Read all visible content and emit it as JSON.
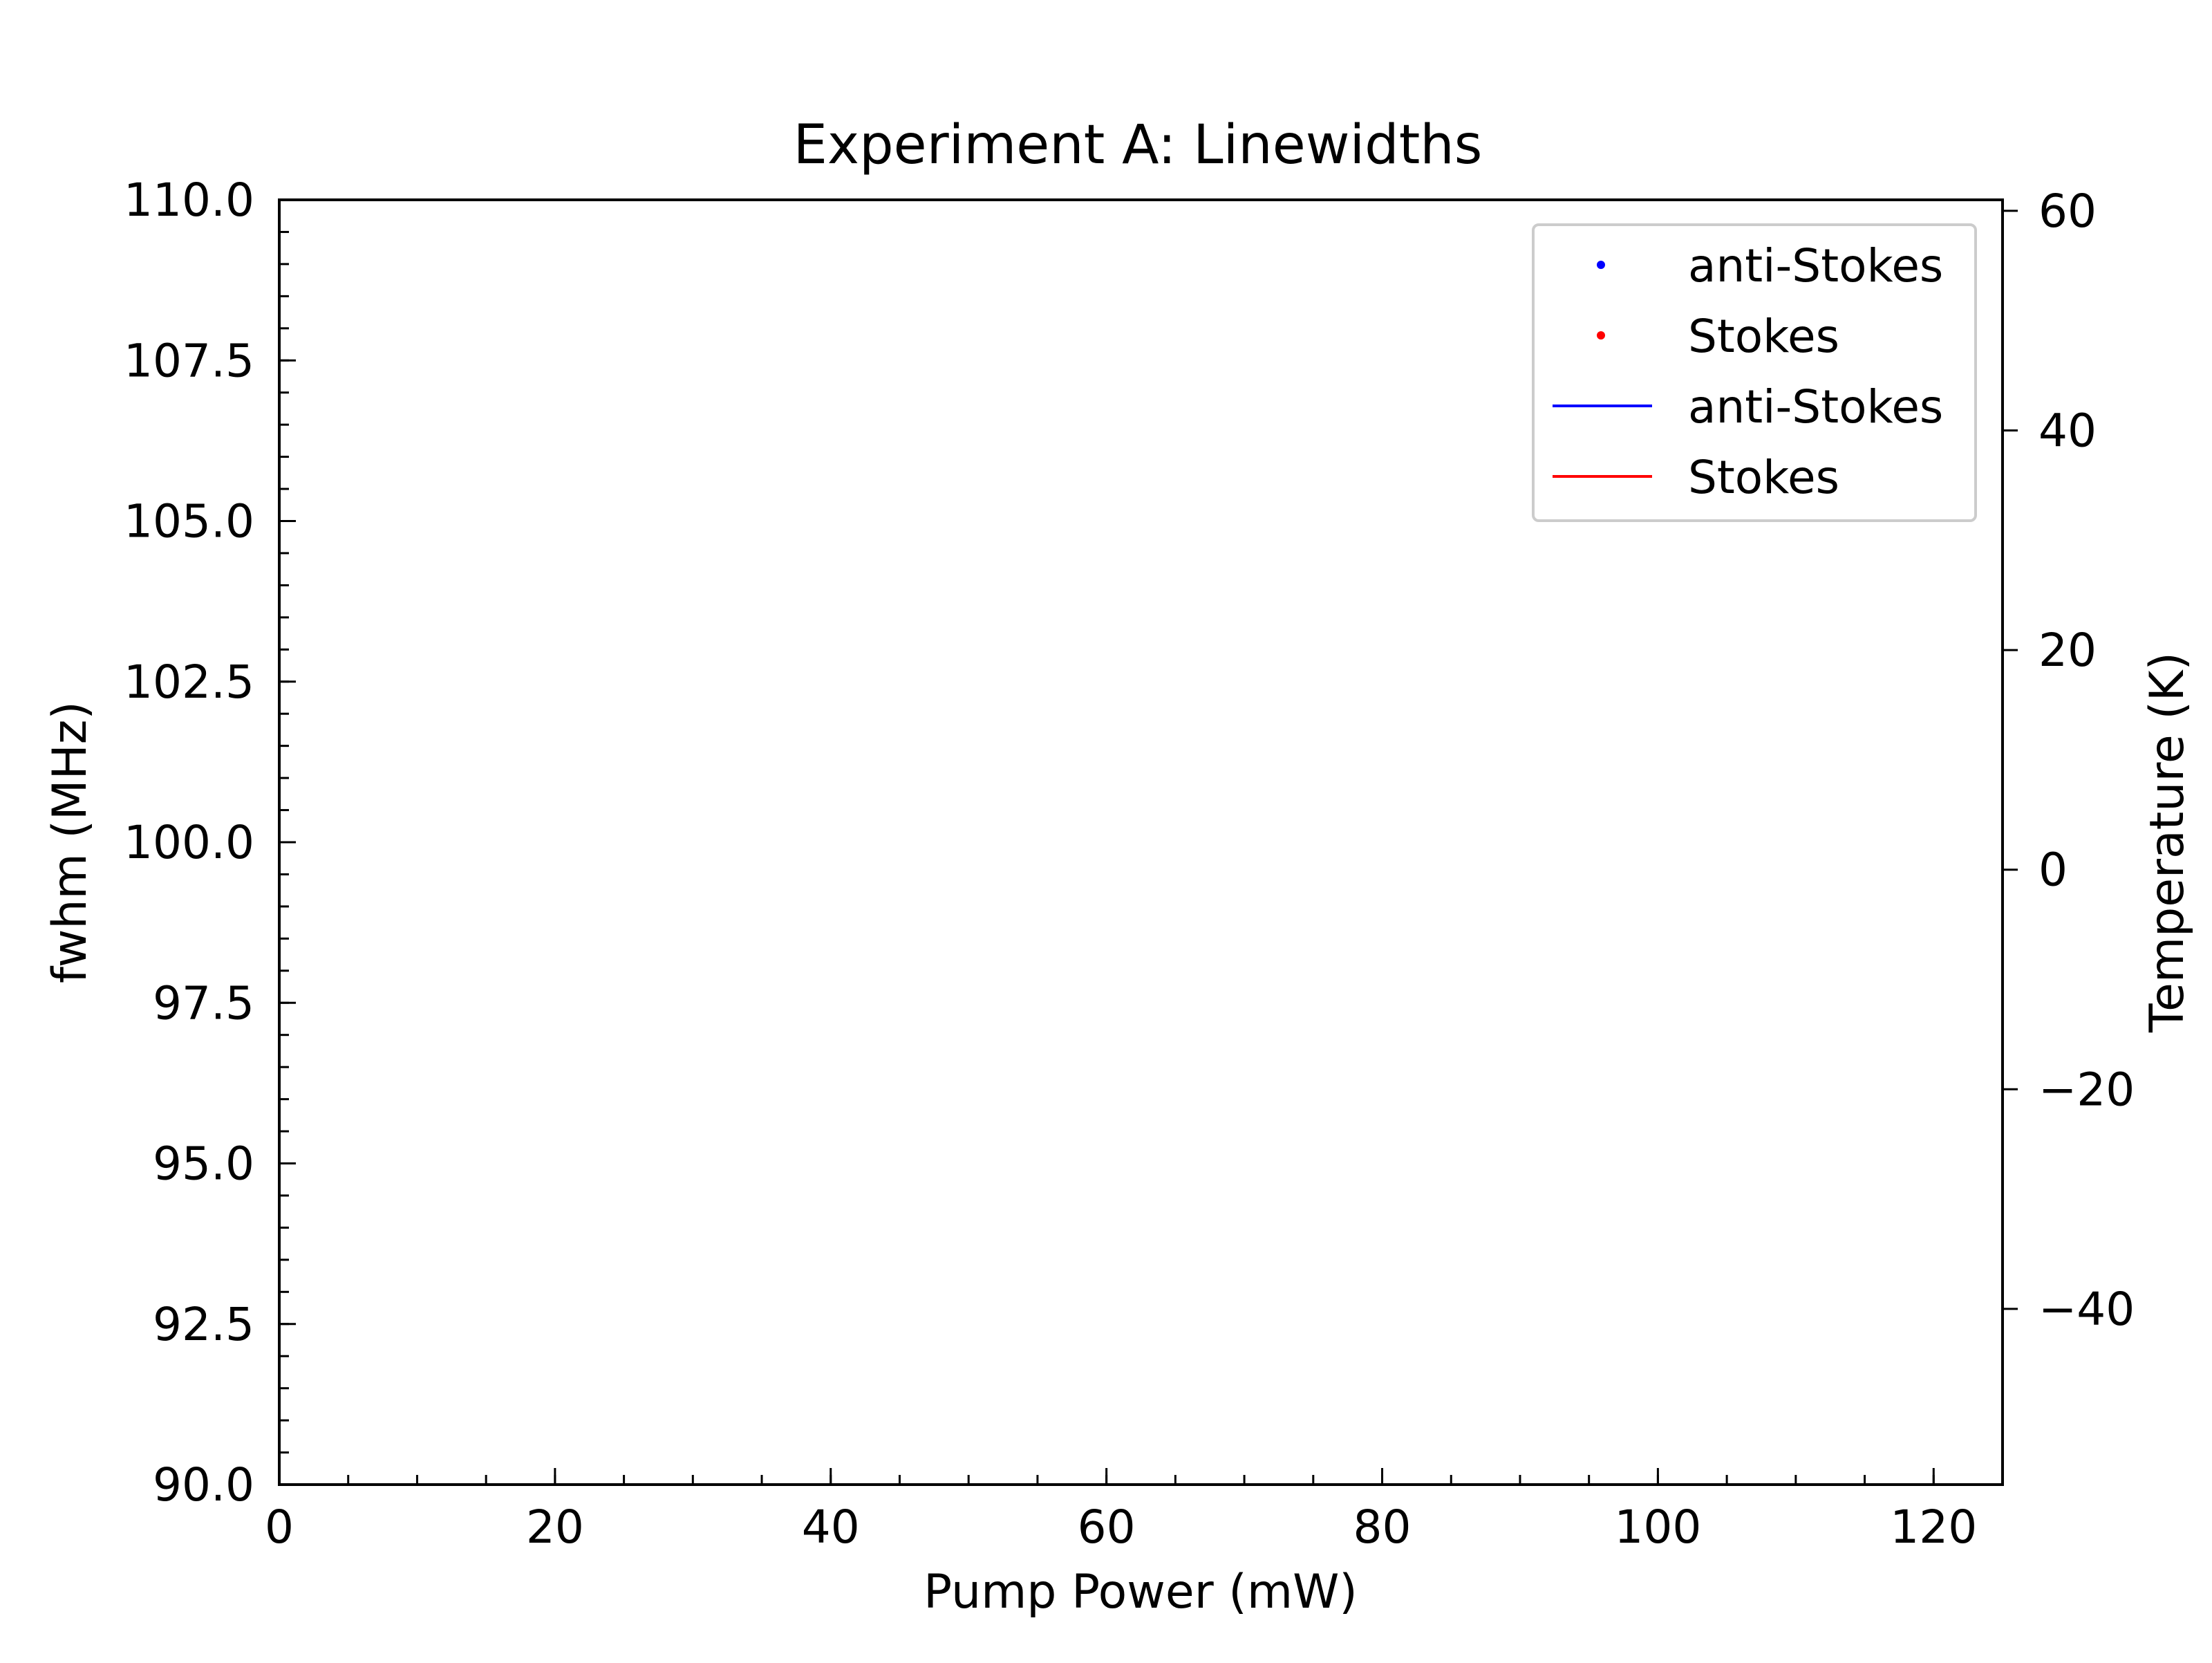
{
  "chart_data": {
    "type": "scatter",
    "title": "Experiment A: Linewidths",
    "xlabel": "Pump Power (mW)",
    "ylabel": "fwhm (MHz)",
    "y2label": "Temperature (K)",
    "xlim": [
      0,
      125
    ],
    "ylim": [
      90,
      110
    ],
    "y2lim": [
      -56,
      61
    ],
    "x_ticks": [
      0,
      20,
      40,
      60,
      80,
      100,
      120
    ],
    "x_tick_labels": [
      "0",
      "20",
      "40",
      "60",
      "80",
      "100",
      "120"
    ],
    "x_minor_step": 5,
    "y_ticks": [
      90,
      92.5,
      95,
      97.5,
      100,
      102.5,
      105,
      107.5,
      110
    ],
    "y_tick_labels": [
      "90.0",
      "92.5",
      "95.0",
      "97.5",
      "100.0",
      "102.5",
      "105.0",
      "107.5",
      "110.0"
    ],
    "y_minor_step": 0.5,
    "y2_ticks": [
      -40,
      -20,
      0,
      20,
      40,
      60
    ],
    "y2_tick_labels": [
      "−40",
      "−20",
      "0",
      "20",
      "40",
      "60"
    ],
    "grid": false,
    "legend_position": "top-right",
    "legend": [
      {
        "label": "anti-Stokes",
        "marker": "dot",
        "color": "#0000ff"
      },
      {
        "label": "Stokes",
        "marker": "dot",
        "color": "#ff0000"
      },
      {
        "label": "anti-Stokes",
        "marker": "line",
        "color": "#0000ff"
      },
      {
        "label": "Stokes",
        "marker": "line",
        "color": "#ff0000"
      }
    ],
    "series": [
      {
        "name": "anti-Stokes",
        "kind": "points",
        "color": "#0000ff",
        "x": [],
        "y": []
      },
      {
        "name": "Stokes",
        "kind": "points",
        "color": "#ff0000",
        "x": [],
        "y": []
      },
      {
        "name": "anti-Stokes",
        "kind": "line",
        "axis": "right",
        "color": "#0000ff",
        "x": [],
        "y": []
      },
      {
        "name": "Stokes",
        "kind": "line",
        "axis": "right",
        "color": "#ff0000",
        "x": [],
        "y": []
      }
    ]
  }
}
